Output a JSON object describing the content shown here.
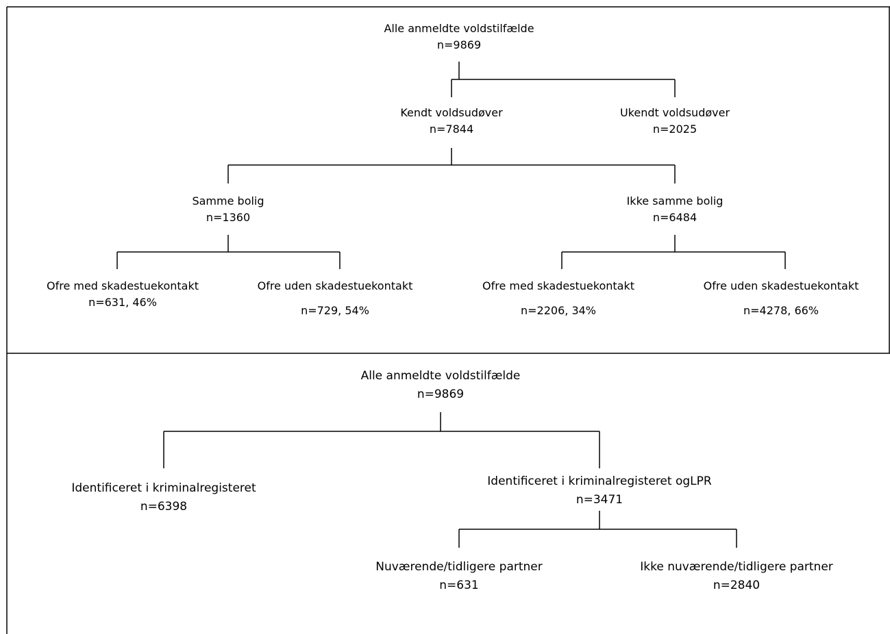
{
  "cut_caption": "",
  "panel_top": {
    "root": {
      "label": "Alle anmeldte voldstilfælde",
      "n": "n=9869"
    },
    "level1": [
      {
        "label": "Kendt voldsudøver",
        "n": "n=7844"
      },
      {
        "label": "Ukendt voldsudøver",
        "n": "n=2025"
      }
    ],
    "level2": [
      {
        "label": "Samme bolig",
        "n": "n=1360"
      },
      {
        "label": "Ikke samme bolig",
        "n": "n=6484"
      }
    ],
    "level3": [
      {
        "label": "Ofre med skadestuekontakt",
        "n": "n=631, 46%"
      },
      {
        "label": "Ofre uden skadestuekontakt",
        "n": "n=729, 54%"
      },
      {
        "label": "Ofre med skadestuekontakt",
        "n": "n=2206, 34%"
      },
      {
        "label": "Ofre uden skadestuekontakt",
        "n": "n=4278, 66%"
      }
    ]
  },
  "panel_bottom": {
    "root": {
      "label": "Alle anmeldte voldstilfælde",
      "n": "n=9869"
    },
    "level1": [
      {
        "label": "Identificeret i kriminalregisteret",
        "n": "n=6398"
      },
      {
        "label": "Identificeret i kriminalregisteret ogLPR",
        "n": "n=3471"
      }
    ],
    "level2": [
      {
        "label": "Nuværende/tidligere partner",
        "n": "n=631"
      },
      {
        "label": "Ikke nuværende/tidligere partner",
        "n": "n=2840"
      }
    ]
  }
}
